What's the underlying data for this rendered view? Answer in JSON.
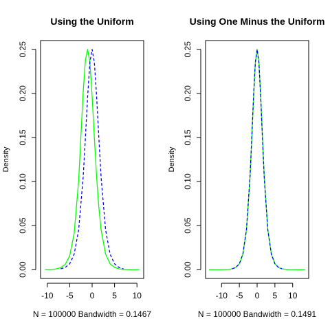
{
  "chart_data": [
    {
      "type": "line",
      "title": "Using the Uniform",
      "xlabel": "N = 100000   Bandwidth = 0.1467",
      "ylabel": "Density",
      "xlim": [
        -11.5,
        11.5
      ],
      "ylim": [
        -0.01,
        0.26
      ],
      "x_ticks": [
        -10,
        -5,
        0,
        5,
        10
      ],
      "y_ticks": [
        0.0,
        0.05,
        0.1,
        0.15,
        0.2,
        0.25
      ],
      "y_tick_labels": [
        "0.00",
        "0.05",
        "0.10",
        "0.15",
        "0.20",
        "0.25"
      ],
      "grid": false,
      "series": [
        {
          "color": "#00ff00",
          "style": "solid",
          "x": [
            -10.5,
            -9,
            -8,
            -7,
            -6,
            -5,
            -4,
            -3,
            -2,
            -1.5,
            -1,
            -0.5,
            0,
            0.5,
            1,
            1.5,
            2,
            3,
            4,
            5,
            6,
            7,
            8,
            9,
            10.5
          ],
          "values": [
            0.0001,
            0.0003,
            0.0008,
            0.0022,
            0.0059,
            0.0158,
            0.0413,
            0.1013,
            0.2015,
            0.2377,
            0.25,
            0.2352,
            0.1966,
            0.1496,
            0.105,
            0.0707,
            0.0452,
            0.0177,
            0.0066,
            0.0025,
            0.0009,
            0.0003,
            0.0001,
            0.0,
            0.0
          ]
        },
        {
          "color": "#0000ff",
          "style": "dashed",
          "x": [
            -7,
            -6,
            -5,
            -4,
            -3,
            -2,
            -1.5,
            -1,
            -0.5,
            0,
            0.5,
            1,
            1.5,
            2,
            3,
            4,
            5,
            6,
            7
          ],
          "values": [
            0.0009,
            0.0025,
            0.0066,
            0.0177,
            0.0452,
            0.105,
            0.1496,
            0.1966,
            0.2352,
            0.25,
            0.2352,
            0.1966,
            0.1496,
            0.105,
            0.0452,
            0.0177,
            0.0066,
            0.0025,
            0.0009
          ]
        }
      ]
    },
    {
      "type": "line",
      "title": "Using One Minus the Uniform",
      "xlabel": "N = 100000   Bandwidth = 0.1491",
      "ylabel": "Density",
      "xlim": [
        -14.5,
        14.5
      ],
      "ylim": [
        -0.01,
        0.26
      ],
      "x_ticks": [
        -10,
        -5,
        0,
        5,
        10
      ],
      "y_ticks": [
        0.0,
        0.05,
        0.1,
        0.15,
        0.2,
        0.25
      ],
      "y_tick_labels": [
        "0.00",
        "0.05",
        "0.10",
        "0.15",
        "0.20",
        "0.25"
      ],
      "grid": false,
      "series": [
        {
          "color": "#00ff00",
          "style": "solid",
          "x": [
            -13.5,
            -11,
            -9,
            -8,
            -7,
            -6,
            -5,
            -4,
            -3,
            -2,
            -1.5,
            -1,
            -0.5,
            0,
            0.5,
            1,
            1.5,
            2,
            3,
            4,
            5,
            6,
            7,
            8,
            9,
            11,
            13.5
          ],
          "values": [
            0.0,
            0.0,
            0.0001,
            0.0003,
            0.0009,
            0.0025,
            0.0066,
            0.0177,
            0.0452,
            0.105,
            0.1496,
            0.1966,
            0.2352,
            0.25,
            0.2352,
            0.1966,
            0.1496,
            0.105,
            0.0452,
            0.0177,
            0.0066,
            0.0025,
            0.0009,
            0.0003,
            0.0001,
            0.0,
            0.0
          ]
        },
        {
          "color": "#0000ff",
          "style": "dashed",
          "x": [
            -7,
            -6,
            -5,
            -4,
            -3,
            -2,
            -1.5,
            -1,
            -0.5,
            0,
            0.5,
            1,
            1.5,
            2,
            3,
            4,
            5,
            6,
            7
          ],
          "values": [
            0.0009,
            0.0025,
            0.0066,
            0.0177,
            0.0452,
            0.105,
            0.1496,
            0.1966,
            0.2352,
            0.25,
            0.2352,
            0.1966,
            0.1496,
            0.105,
            0.0452,
            0.0177,
            0.0066,
            0.0025,
            0.0009
          ]
        }
      ]
    }
  ]
}
